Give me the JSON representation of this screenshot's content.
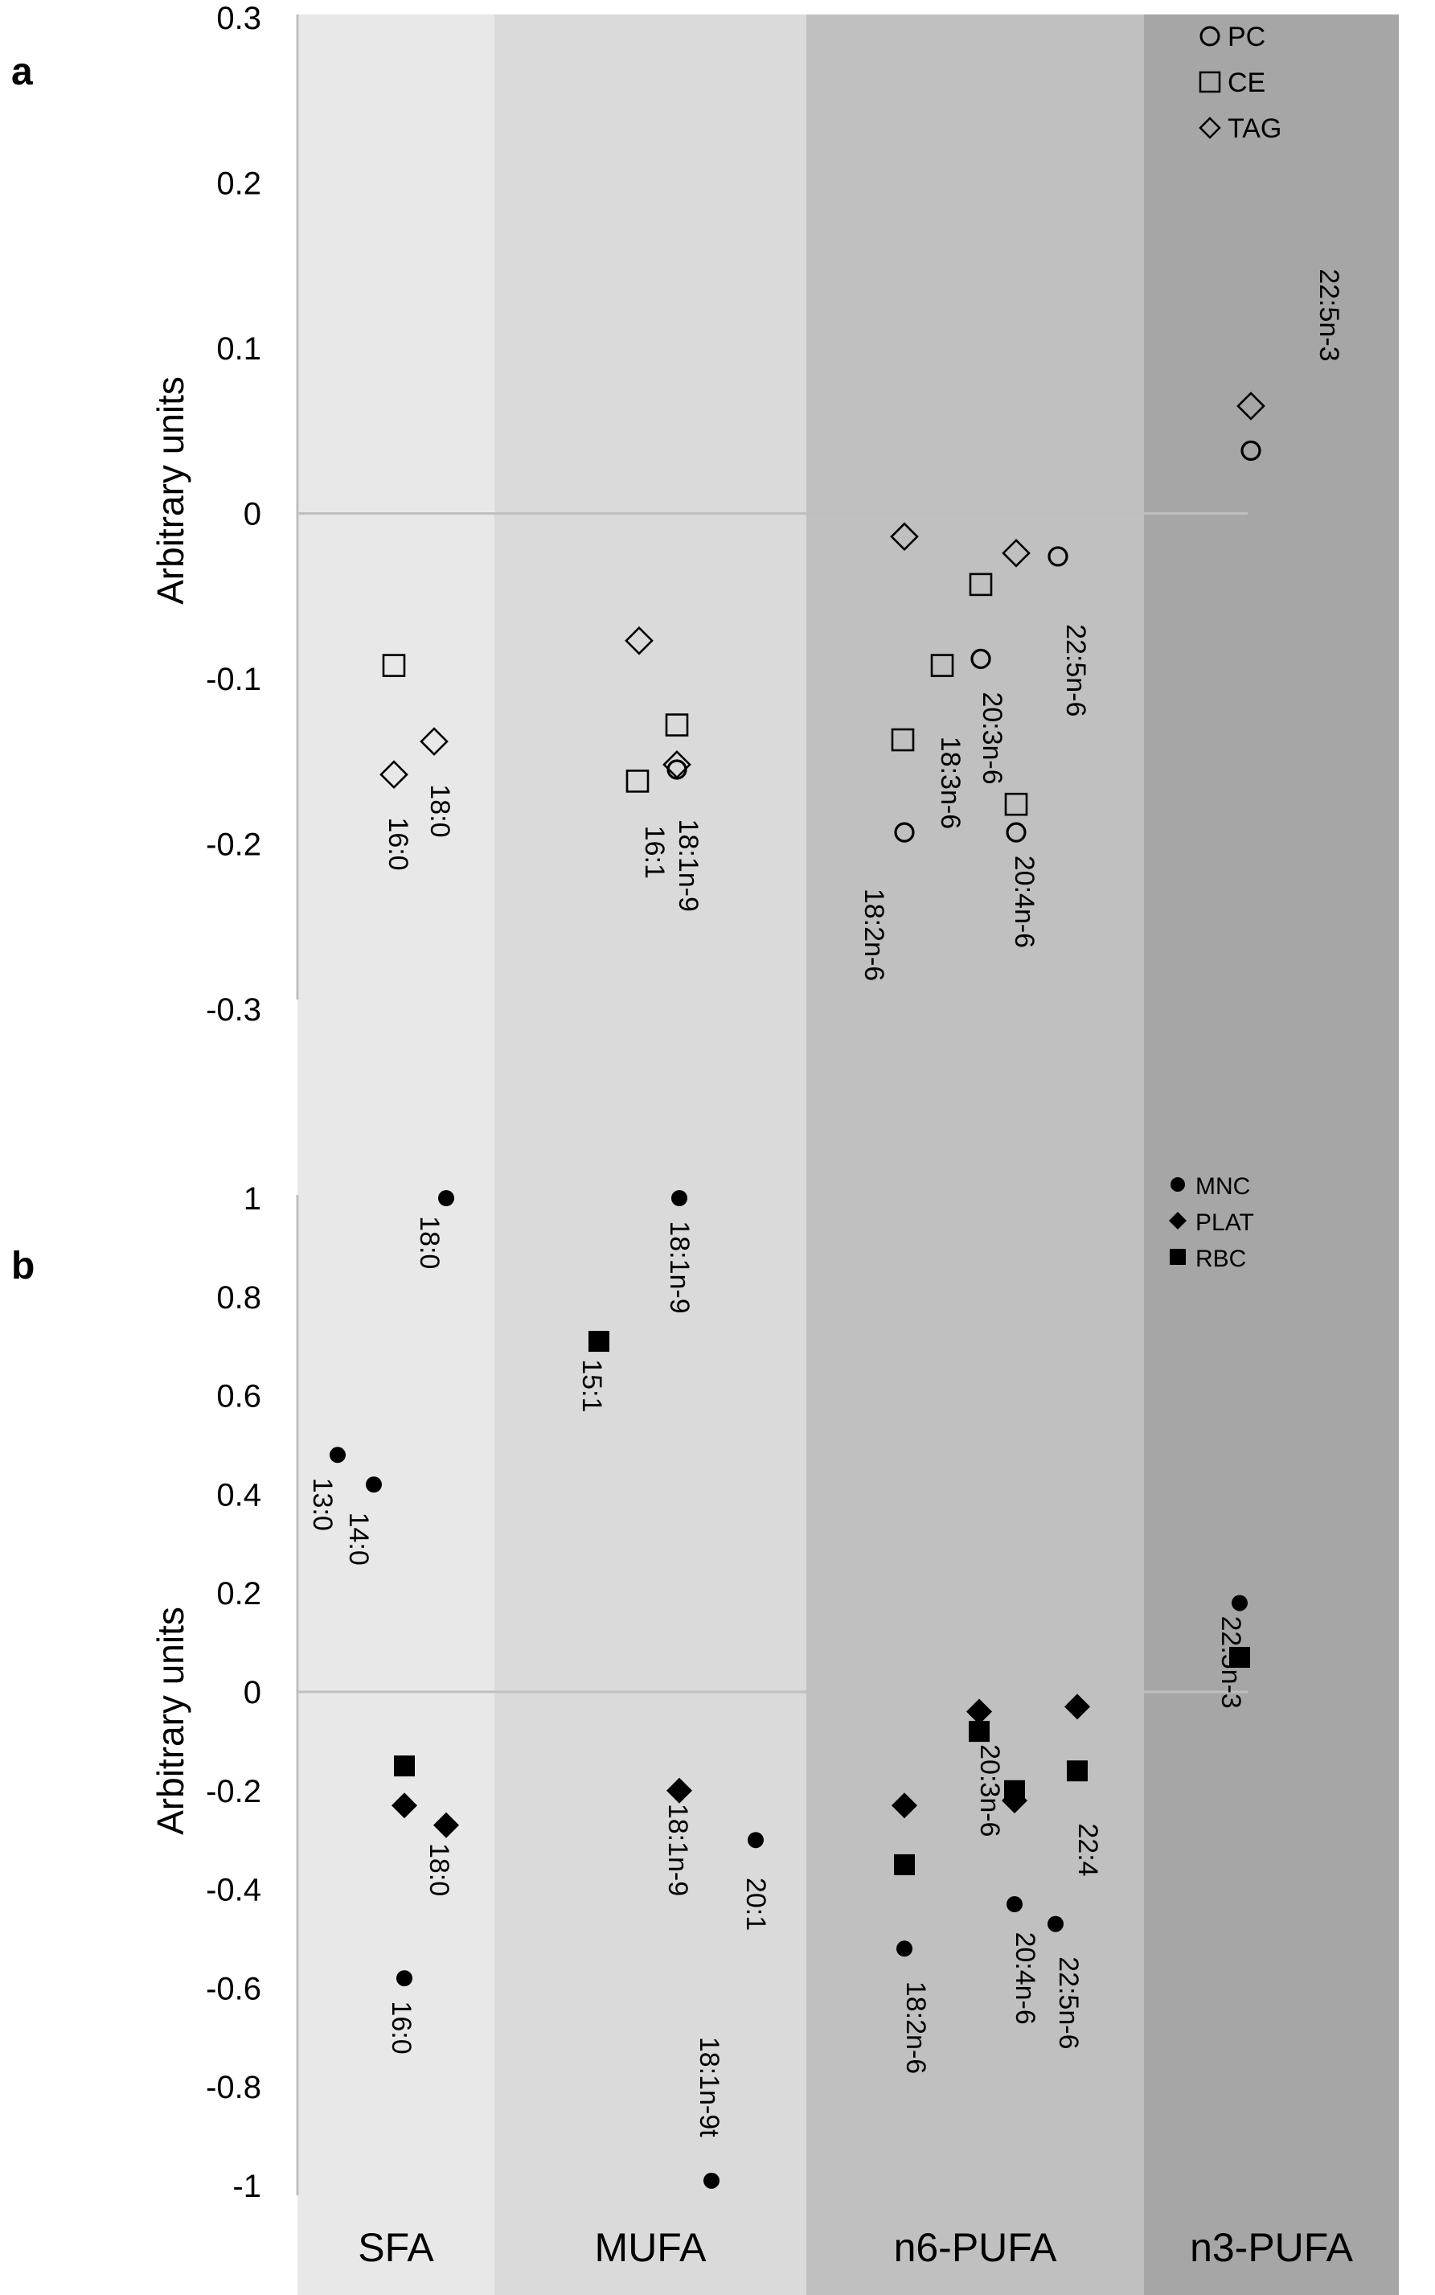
{
  "figure": {
    "panel_a_letter": "a",
    "panel_b_letter": "b",
    "ylabel": "Arbitrary units",
    "colors": {
      "SFA": "#e8e8e8",
      "MUFA": "#dadada",
      "n6-PUFA": "#c0c0c0",
      "n3-PUFA": "#a6a6a6",
      "axis": "#bfbfbf",
      "marker": "#000000"
    }
  },
  "chart_data": [
    {
      "panel": "a",
      "type": "scatter",
      "ylabel": "Arbitrary units",
      "ylim": [
        -0.3,
        0.3
      ],
      "yticks": [
        "0.3",
        "0.2",
        "0.1",
        "0",
        "-0.1",
        "-0.2",
        "-0.3"
      ],
      "ytick_values": [
        0.3,
        0.2,
        0.1,
        0,
        -0.1,
        -0.2,
        -0.3
      ],
      "categories": [
        "SFA",
        "MUFA",
        "n6-PUFA",
        "n3-PUFA"
      ],
      "legend": {
        "position": "top-right",
        "entries": [
          {
            "label": "PC",
            "marker": "circle-open"
          },
          {
            "label": "CE",
            "marker": "square-open"
          },
          {
            "label": "TAG",
            "marker": "diamond-open"
          }
        ]
      },
      "points": [
        {
          "group": "SFA",
          "fatty_acid": "16:0",
          "series": "CE",
          "y": -0.092
        },
        {
          "group": "SFA",
          "fatty_acid": "16:0",
          "series": "TAG",
          "y": -0.158
        },
        {
          "group": "SFA",
          "fatty_acid": "18:0",
          "series": "TAG",
          "y": -0.138
        },
        {
          "group": "MUFA",
          "fatty_acid": "16:1",
          "series": "TAG",
          "y": -0.077
        },
        {
          "group": "MUFA",
          "fatty_acid": "16:1",
          "series": "CE",
          "y": -0.162
        },
        {
          "group": "MUFA",
          "fatty_acid": "18:1n-9",
          "series": "CE",
          "y": -0.128
        },
        {
          "group": "MUFA",
          "fatty_acid": "18:1n-9",
          "series": "TAG",
          "y": -0.152
        },
        {
          "group": "MUFA",
          "fatty_acid": "18:1n-9",
          "series": "PC",
          "y": -0.155
        },
        {
          "group": "n6-PUFA",
          "fatty_acid": "18:2n-6",
          "series": "TAG",
          "y": -0.014
        },
        {
          "group": "n6-PUFA",
          "fatty_acid": "18:2n-6",
          "series": "CE",
          "y": -0.137
        },
        {
          "group": "n6-PUFA",
          "fatty_acid": "18:2n-6",
          "series": "PC",
          "y": -0.193
        },
        {
          "group": "n6-PUFA",
          "fatty_acid": "18:3n-6",
          "series": "CE",
          "y": -0.092
        },
        {
          "group": "n6-PUFA",
          "fatty_acid": "20:3n-6",
          "series": "CE",
          "y": -0.043
        },
        {
          "group": "n6-PUFA",
          "fatty_acid": "20:3n-6",
          "series": "PC",
          "y": -0.088
        },
        {
          "group": "n6-PUFA",
          "fatty_acid": "20:4n-6",
          "series": "TAG",
          "y": -0.024
        },
        {
          "group": "n6-PUFA",
          "fatty_acid": "20:4n-6",
          "series": "CE",
          "y": -0.176
        },
        {
          "group": "n6-PUFA",
          "fatty_acid": "20:4n-6",
          "series": "PC",
          "y": -0.193
        },
        {
          "group": "n6-PUFA",
          "fatty_acid": "22:5n-6",
          "series": "PC",
          "y": -0.026
        },
        {
          "group": "n3-PUFA",
          "fatty_acid": "22:5n-3",
          "series": "TAG",
          "y": 0.065
        },
        {
          "group": "n3-PUFA",
          "fatty_acid": "22:5n-3",
          "series": "PC",
          "y": 0.038
        }
      ],
      "labels": [
        {
          "text": "16:0",
          "group": "SFA",
          "y": -0.2
        },
        {
          "text": "18:0",
          "group": "SFA",
          "y": -0.18
        },
        {
          "text": "16:1",
          "group": "MUFA",
          "y": -0.205
        },
        {
          "text": "18:1n-9",
          "group": "MUFA",
          "y": -0.213
        },
        {
          "text": "18:2n-6",
          "group": "n6-PUFA",
          "y": -0.255
        },
        {
          "text": "18:3n-6",
          "group": "n6-PUFA",
          "y": -0.163
        },
        {
          "text": "20:3n-6",
          "group": "n6-PUFA",
          "y": -0.136
        },
        {
          "text": "20:4n-6",
          "group": "n6-PUFA",
          "y": -0.235
        },
        {
          "text": "22:5n-6",
          "group": "n6-PUFA",
          "y": -0.095
        },
        {
          "text": "22:5n-3",
          "group": "n3-PUFA",
          "y": 0.12
        }
      ]
    },
    {
      "panel": "b",
      "type": "scatter",
      "ylabel": "Arbitrary units",
      "ylim": [
        -1,
        1
      ],
      "yticks": [
        "1",
        "0.8",
        "0.6",
        "0.4",
        "0.2",
        "0",
        "-0.2",
        "-0.4",
        "-0.6",
        "-0.8",
        "-1"
      ],
      "ytick_values": [
        1,
        0.8,
        0.6,
        0.4,
        0.2,
        0,
        -0.2,
        -0.4,
        -0.6,
        -0.8,
        -1
      ],
      "categories": [
        "SFA",
        "MUFA",
        "n6-PUFA",
        "n3-PUFA"
      ],
      "legend": {
        "position": "top-right",
        "entries": [
          {
            "label": "MNC",
            "marker": "circle-filled"
          },
          {
            "label": "PLAT",
            "marker": "diamond-filled"
          },
          {
            "label": "RBC",
            "marker": "square-filled"
          }
        ]
      },
      "points": [
        {
          "group": "SFA",
          "fatty_acid": "13:0",
          "series": "MNC",
          "y": 0.48
        },
        {
          "group": "SFA",
          "fatty_acid": "14:0",
          "series": "MNC",
          "y": 0.42
        },
        {
          "group": "SFA",
          "fatty_acid": "18:0",
          "series": "MNC",
          "y": 1.0
        },
        {
          "group": "SFA",
          "fatty_acid": "16:0",
          "series": "RBC",
          "y": -0.15
        },
        {
          "group": "SFA",
          "fatty_acid": "16:0",
          "series": "PLAT",
          "y": -0.23
        },
        {
          "group": "SFA",
          "fatty_acid": "16:0",
          "series": "MNC",
          "y": -0.58
        },
        {
          "group": "SFA",
          "fatty_acid": "18:0",
          "series": "PLAT",
          "y": -0.27
        },
        {
          "group": "MUFA",
          "fatty_acid": "15:1",
          "series": "RBC",
          "y": 0.71
        },
        {
          "group": "MUFA",
          "fatty_acid": "18:1n-9",
          "series": "MNC",
          "y": 1.0
        },
        {
          "group": "MUFA",
          "fatty_acid": "18:1n-9",
          "series": "PLAT",
          "y": -0.2
        },
        {
          "group": "MUFA",
          "fatty_acid": "20:1",
          "series": "MNC",
          "y": -0.3
        },
        {
          "group": "MUFA",
          "fatty_acid": "18:1n-9t",
          "series": "MNC",
          "y": -0.99
        },
        {
          "group": "n6-PUFA",
          "fatty_acid": "18:2n-6",
          "series": "PLAT",
          "y": -0.23
        },
        {
          "group": "n6-PUFA",
          "fatty_acid": "18:2n-6",
          "series": "RBC",
          "y": -0.35
        },
        {
          "group": "n6-PUFA",
          "fatty_acid": "18:2n-6",
          "series": "MNC",
          "y": -0.52
        },
        {
          "group": "n6-PUFA",
          "fatty_acid": "20:3n-6",
          "series": "PLAT",
          "y": -0.04
        },
        {
          "group": "n6-PUFA",
          "fatty_acid": "20:3n-6",
          "series": "RBC",
          "y": -0.08
        },
        {
          "group": "n6-PUFA",
          "fatty_acid": "20:4n-6",
          "series": "RBC",
          "y": -0.2
        },
        {
          "group": "n6-PUFA",
          "fatty_acid": "20:4n-6",
          "series": "PLAT",
          "y": -0.22
        },
        {
          "group": "n6-PUFA",
          "fatty_acid": "20:4n-6",
          "series": "MNC",
          "y": -0.43
        },
        {
          "group": "n6-PUFA",
          "fatty_acid": "22:5n-6",
          "series": "MNC",
          "y": -0.47
        },
        {
          "group": "n6-PUFA",
          "fatty_acid": "22:4",
          "series": "PLAT",
          "y": -0.03
        },
        {
          "group": "n6-PUFA",
          "fatty_acid": "22:4",
          "series": "RBC",
          "y": -0.16
        },
        {
          "group": "n3-PUFA",
          "fatty_acid": "22:5n-3",
          "series": "MNC",
          "y": 0.18
        },
        {
          "group": "n3-PUFA",
          "fatty_acid": "22:5n-3",
          "series": "RBC",
          "y": 0.07
        }
      ],
      "labels": [
        {
          "text": "13:0",
          "group": "SFA",
          "y": 0.38
        },
        {
          "text": "14:0",
          "group": "SFA",
          "y": 0.31
        },
        {
          "text": "18:0",
          "group": "SFA",
          "y": 0.91
        },
        {
          "text": "18:0",
          "group": "SFA",
          "y": -0.36
        },
        {
          "text": "16:0",
          "group": "SFA",
          "y": -0.68
        },
        {
          "text": "15:1",
          "group": "MUFA",
          "y": 0.62
        },
        {
          "text": "18:1n-9",
          "group": "MUFA",
          "y": 0.86
        },
        {
          "text": "18:1n-9",
          "group": "MUFA",
          "y": -0.32
        },
        {
          "text": "20:1",
          "group": "MUFA",
          "y": -0.43
        },
        {
          "text": "18:1n-9t",
          "group": "MUFA",
          "y": -0.8
        },
        {
          "text": "18:2n-6",
          "group": "n6-PUFA",
          "y": -0.68
        },
        {
          "text": "20:3n-6",
          "group": "n6-PUFA",
          "y": -0.2
        },
        {
          "text": "20:4n-6",
          "group": "n6-PUFA",
          "y": -0.58
        },
        {
          "text": "22:5n-6",
          "group": "n6-PUFA",
          "y": -0.63
        },
        {
          "text": "22:4",
          "group": "n6-PUFA",
          "y": -0.32
        },
        {
          "text": "22:5n-3",
          "group": "n3-PUFA",
          "y": 0.06
        }
      ]
    }
  ]
}
